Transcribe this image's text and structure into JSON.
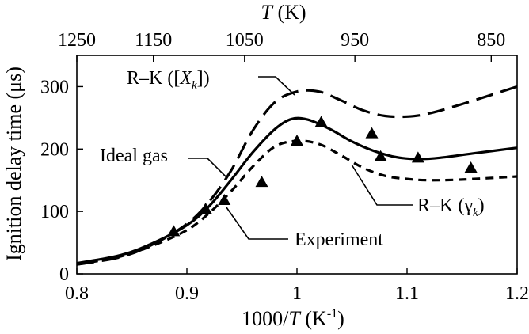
{
  "chart_data": {
    "type": "line",
    "xlabel": "1000/T (K-1)",
    "xlabel_parts": {
      "prefix": "1000/",
      "var": "T",
      "unit_open": " (K",
      "unit_sup": "-1",
      "unit_close": ")"
    },
    "ylabel": "Ignition delay time (μs)",
    "top_axis_label_parts": {
      "var": "T",
      "unit": " (K)"
    },
    "xlim": [
      0.8,
      1.2
    ],
    "ylim": [
      0,
      350
    ],
    "x_ticks": [
      0.8,
      0.9,
      1.0,
      1.1,
      1.2
    ],
    "x_tick_labels": [
      "0.8",
      "0.9",
      "1",
      "1.1",
      "1.2"
    ],
    "y_ticks": [
      0,
      100,
      200,
      300
    ],
    "y_tick_labels": [
      "0",
      "100",
      "200",
      "300"
    ],
    "top_ticks_T": [
      1250,
      1150,
      1050,
      950,
      850
    ],
    "top_tick_labels": [
      "1250",
      "1150",
      "1050",
      "950",
      "850"
    ],
    "grid": false,
    "series": [
      {
        "key": "ideal",
        "style": "solid",
        "points": [
          [
            0.8,
            17
          ],
          [
            0.84,
            30
          ],
          [
            0.87,
            50
          ],
          [
            0.9,
            78
          ],
          [
            0.92,
            108
          ],
          [
            0.94,
            150
          ],
          [
            0.96,
            195
          ],
          [
            0.98,
            232
          ],
          [
            0.995,
            248
          ],
          [
            1.01,
            247
          ],
          [
            1.03,
            232
          ],
          [
            1.05,
            212
          ],
          [
            1.07,
            197
          ],
          [
            1.09,
            187
          ],
          [
            1.11,
            184
          ],
          [
            1.13,
            186
          ],
          [
            1.16,
            193
          ],
          [
            1.2,
            202
          ]
        ]
      },
      {
        "key": "rk_xk",
        "style": "long-dash",
        "points": [
          [
            0.8,
            15
          ],
          [
            0.84,
            27
          ],
          [
            0.87,
            48
          ],
          [
            0.9,
            80
          ],
          [
            0.92,
            115
          ],
          [
            0.94,
            165
          ],
          [
            0.96,
            230
          ],
          [
            0.98,
            275
          ],
          [
            1.0,
            292
          ],
          [
            1.02,
            292
          ],
          [
            1.04,
            278
          ],
          [
            1.06,
            262
          ],
          [
            1.08,
            253
          ],
          [
            1.1,
            252
          ],
          [
            1.12,
            257
          ],
          [
            1.15,
            272
          ],
          [
            1.2,
            300
          ]
        ]
      },
      {
        "key": "rk_gamma",
        "style": "short-dash",
        "points": [
          [
            0.8,
            15
          ],
          [
            0.84,
            28
          ],
          [
            0.87,
            46
          ],
          [
            0.9,
            70
          ],
          [
            0.92,
            97
          ],
          [
            0.94,
            132
          ],
          [
            0.96,
            172
          ],
          [
            0.98,
            204
          ],
          [
            1.0,
            213
          ],
          [
            1.02,
            208
          ],
          [
            1.04,
            190
          ],
          [
            1.06,
            170
          ],
          [
            1.08,
            157
          ],
          [
            1.1,
            152
          ],
          [
            1.12,
            150
          ],
          [
            1.15,
            151
          ],
          [
            1.2,
            156
          ]
        ]
      }
    ],
    "experiment": {
      "marker": "filled-triangle",
      "points": [
        [
          0.888,
          68
        ],
        [
          0.917,
          104
        ],
        [
          0.934,
          118
        ],
        [
          0.968,
          147
        ],
        [
          1.0,
          213
        ],
        [
          1.022,
          243
        ],
        [
          1.068,
          225
        ],
        [
          1.076,
          188
        ],
        [
          1.11,
          186
        ],
        [
          1.158,
          170
        ]
      ]
    },
    "labels": {
      "rk_xk": {
        "text_pre": "R–K ([",
        "text_var": "X",
        "text_sub": "k",
        "text_post": "])"
      },
      "ideal": {
        "text": "Ideal gas"
      },
      "rk_gamma": {
        "text_pre": "R–K (γ",
        "text_sub": "k",
        "text_post": ")"
      },
      "experiment": {
        "text": "Experiment"
      }
    }
  }
}
